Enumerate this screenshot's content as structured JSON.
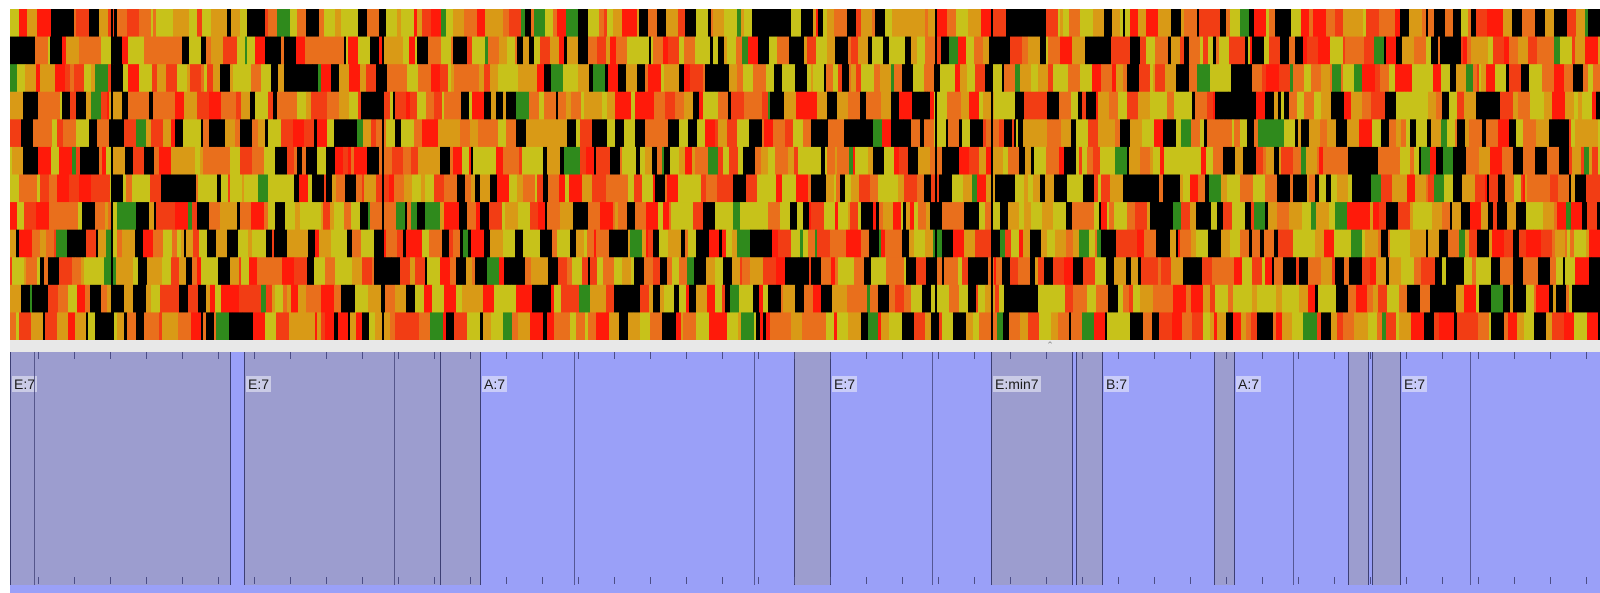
{
  "heatmap": {
    "rows": 12,
    "palette": [
      "#000000",
      "#2f8a1c",
      "#c7c21a",
      "#d99a16",
      "#e96f1c",
      "#f23d14",
      "#ff1a0a"
    ],
    "beat_lines": [
      101,
      372,
      925,
      981
    ]
  },
  "chords": {
    "segments": [
      {
        "label": "E:7",
        "start": 0,
        "end": 220,
        "style": "dark"
      },
      {
        "label": "",
        "start": 220,
        "end": 234,
        "style": "light"
      },
      {
        "label": "E:7",
        "start": 234,
        "end": 430,
        "style": "dark"
      },
      {
        "label": "",
        "start": 430,
        "end": 470,
        "style": "dark"
      },
      {
        "label": "A:7",
        "start": 470,
        "end": 784,
        "style": "light"
      },
      {
        "label": "",
        "start": 784,
        "end": 820,
        "style": "dark"
      },
      {
        "label": "E:7",
        "start": 820,
        "end": 981,
        "style": "light"
      },
      {
        "label": "E:min7",
        "start": 981,
        "end": 1062,
        "style": "dark"
      },
      {
        "label": "",
        "start": 1062,
        "end": 1066,
        "style": "light"
      },
      {
        "label": "",
        "start": 1066,
        "end": 1092,
        "style": "dark"
      },
      {
        "label": "B:7",
        "start": 1092,
        "end": 1204,
        "style": "light"
      },
      {
        "label": "",
        "start": 1204,
        "end": 1224,
        "style": "dark"
      },
      {
        "label": "A:7",
        "start": 1224,
        "end": 1338,
        "style": "light"
      },
      {
        "label": "",
        "start": 1338,
        "end": 1358,
        "style": "dark"
      },
      {
        "label": "",
        "start": 1358,
        "end": 1362,
        "style": "light"
      },
      {
        "label": "",
        "start": 1362,
        "end": 1390,
        "style": "dark"
      },
      {
        "label": "E:7",
        "start": 1390,
        "end": 1590,
        "style": "light"
      }
    ]
  }
}
